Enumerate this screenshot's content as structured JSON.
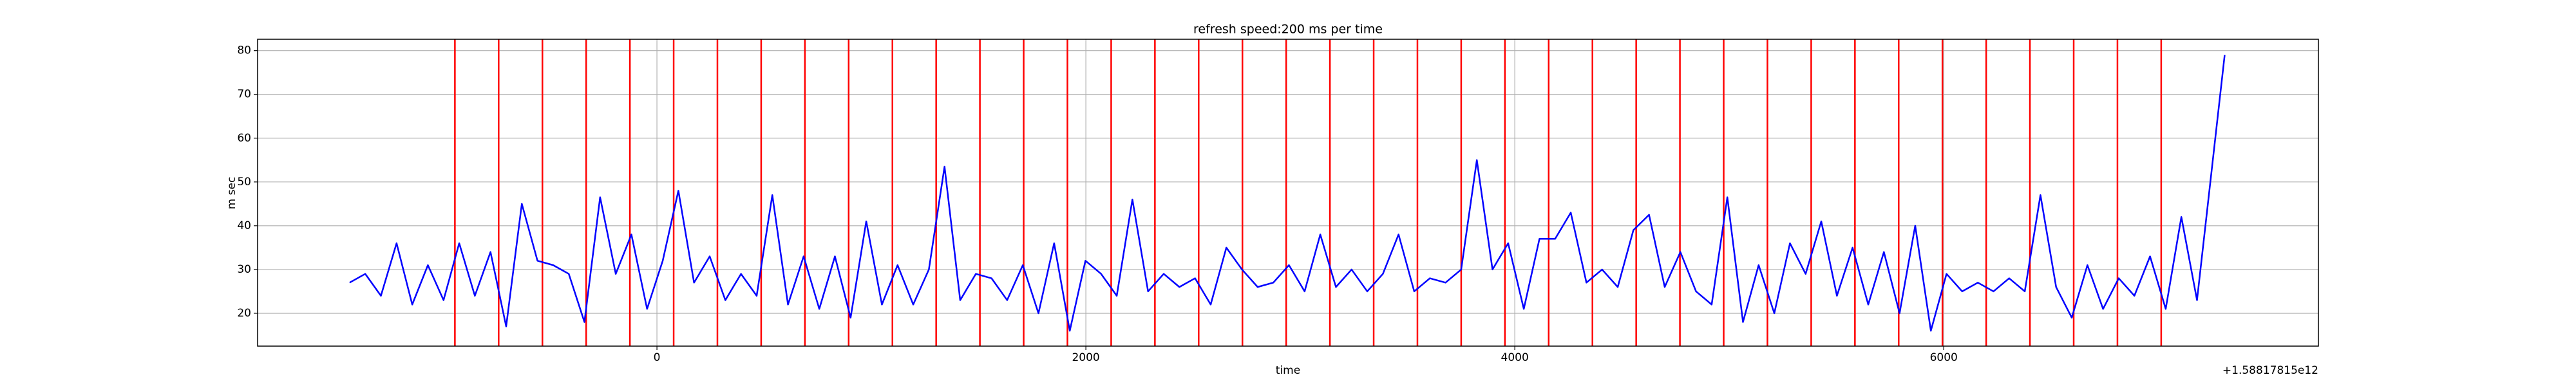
{
  "chart_data": {
    "type": "line",
    "title": "refresh speed:200 ms per time",
    "x_label": "time",
    "y_label": "m sec",
    "x_offset_text": "+1.58817815e12",
    "x": [
      -1433,
      -1360,
      -1287,
      -1214,
      -1141,
      -1068,
      -995,
      -922,
      -849,
      -776,
      -703,
      -630,
      -557,
      -484,
      -411,
      -338,
      -265,
      -192,
      -119,
      -46,
      27,
      100,
      173,
      246,
      319,
      392,
      465,
      538,
      611,
      684,
      757,
      830,
      903,
      976,
      1049,
      1122,
      1195,
      1268,
      1341,
      1414,
      1487,
      1560,
      1633,
      1706,
      1779,
      1852,
      1925,
      1998,
      2071,
      2144,
      2217,
      2290,
      2363,
      2436,
      2509,
      2582,
      2655,
      2728,
      2801,
      2874,
      2947,
      3020,
      3093,
      3166,
      3239,
      3312,
      3385,
      3458,
      3531,
      3604,
      3677,
      3750,
      3823,
      3896,
      3969,
      4042,
      4115,
      4188,
      4261,
      4334,
      4407,
      4480,
      4553,
      4626,
      4699,
      4772,
      4845,
      4918,
      4991,
      5064,
      5137,
      5210,
      5283,
      5356,
      5429,
      5502,
      5575,
      5648,
      5721,
      5794,
      5867,
      5940,
      6013,
      6086,
      6159,
      6232,
      6305,
      6378,
      6451,
      6524,
      6597,
      6670,
      6743,
      6816,
      6889,
      6962,
      7035,
      7108,
      7181,
      7310
    ],
    "values": [
      27,
      29,
      24,
      36,
      22,
      31,
      23,
      36,
      24,
      34,
      17,
      45,
      32,
      31,
      29,
      18,
      46.5,
      29,
      38,
      21,
      32,
      48,
      27,
      33,
      23,
      29,
      24,
      47,
      22,
      33,
      21,
      33,
      19,
      41,
      22,
      31,
      22,
      30,
      53.5,
      23,
      29,
      28,
      23,
      31,
      20,
      36,
      16,
      32,
      29,
      24,
      46,
      25,
      29,
      26,
      28,
      22,
      35,
      30,
      26,
      27,
      31,
      25,
      38,
      26,
      30,
      25,
      29,
      38,
      25,
      28,
      27,
      30,
      55,
      30,
      36,
      21,
      37,
      37,
      43,
      27,
      30,
      26,
      39,
      42.5,
      26,
      34,
      25,
      22,
      46.5,
      18,
      31,
      20,
      36,
      29,
      41,
      24,
      35,
      22,
      34,
      20,
      40,
      16,
      29,
      25,
      27,
      25,
      28,
      25,
      47,
      26,
      19,
      31,
      21,
      28,
      24,
      33,
      21,
      42,
      23,
      79
    ],
    "color": "#0000ff",
    "vlines": [
      -942,
      -738,
      -534,
      -330,
      -126,
      78,
      282,
      486,
      690,
      894,
      1098,
      1302,
      1506,
      1710,
      1914,
      2118,
      2322,
      2526,
      2730,
      2934,
      3138,
      3342,
      3546,
      3750,
      3954,
      4158,
      4362,
      4566,
      4770,
      4974,
      5178,
      5382,
      5586,
      5790,
      5994,
      6198,
      6402,
      6606,
      6810,
      7014
    ],
    "vline_color": "#ff0000",
    "xlim": [
      -1862,
      7747
    ],
    "ylim": [
      12.5,
      82.6
    ],
    "xticks": [
      0,
      2000,
      4000,
      6000
    ],
    "yticks": [
      20,
      30,
      40,
      50,
      60,
      70,
      80
    ],
    "grid": true
  }
}
